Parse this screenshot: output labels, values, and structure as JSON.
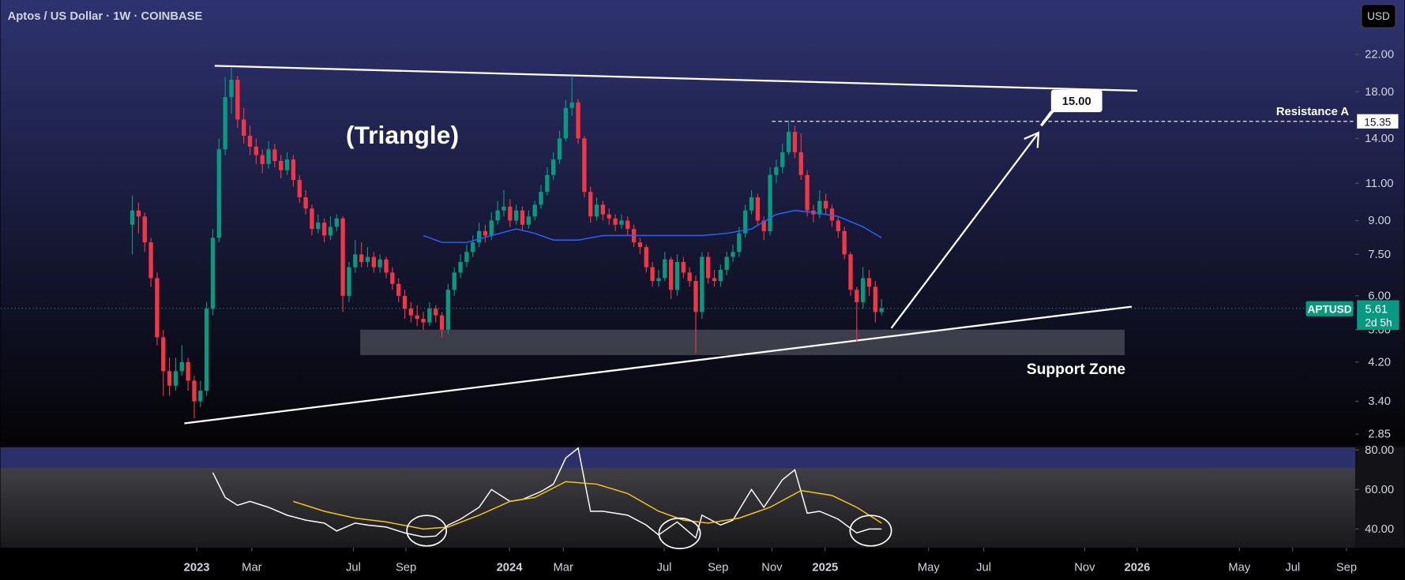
{
  "header": {
    "title": "Aptos / US Dollar · 1W · COINBASE",
    "currency": "USD"
  },
  "chart_data": [
    {
      "type": "candlestick",
      "symbol": "APTUSD",
      "log_scale": true,
      "colors": {
        "up": "#089981",
        "down": "#f23645"
      },
      "xlim": [
        -21.3,
        197.5
      ],
      "xticks": [
        {
          "value": 10.4,
          "label": "2023"
        },
        {
          "value": 19.3,
          "label": "Mar"
        },
        {
          "value": 35.7,
          "label": "Jul"
        },
        {
          "value": 44.2,
          "label": "Sep"
        },
        {
          "value": 60.9,
          "label": "2024"
        },
        {
          "value": 69.6,
          "label": "Mar"
        },
        {
          "value": 85.9,
          "label": "Jul"
        },
        {
          "value": 94.6,
          "label": "Sep"
        },
        {
          "value": 103.3,
          "label": "Nov"
        },
        {
          "value": 111.9,
          "label": "2025"
        },
        {
          "value": 128.6,
          "label": "May"
        },
        {
          "value": 137.5,
          "label": "Jul"
        },
        {
          "value": 153.8,
          "label": "Nov"
        },
        {
          "value": 162.3,
          "label": "2026"
        },
        {
          "value": 178.8,
          "label": "May"
        },
        {
          "value": 187.4,
          "label": "Jul"
        },
        {
          "value": 196.1,
          "label": "Sep"
        }
      ],
      "ylim": [
        2.68,
        29.5
      ],
      "yticks": [
        {
          "value": 22,
          "label": "22.00"
        },
        {
          "value": 18,
          "label": "18.00"
        },
        {
          "value": 14,
          "label": "14.00"
        },
        {
          "value": 11,
          "label": "11.00"
        },
        {
          "value": 9,
          "label": "9.00"
        },
        {
          "value": 7.5,
          "label": "7.50"
        },
        {
          "value": 6,
          "label": "6.00"
        },
        {
          "value": 5,
          "label": "5.00"
        },
        {
          "value": 4.2,
          "label": "4.20"
        },
        {
          "value": 3.4,
          "label": "3.40"
        },
        {
          "value": 2.85,
          "label": "2.85"
        }
      ],
      "ohlc": [
        [
          8.8,
          10.3,
          7.5,
          9.5
        ],
        [
          9.5,
          9.9,
          8.4,
          9.2
        ],
        [
          9.2,
          9.4,
          7.6,
          8.0
        ],
        [
          8.0,
          8.2,
          6.3,
          6.6
        ],
        [
          6.6,
          6.8,
          4.6,
          4.8
        ],
        [
          4.8,
          5.0,
          3.5,
          4.0
        ],
        [
          4.0,
          4.3,
          3.5,
          3.7
        ],
        [
          3.7,
          4.3,
          3.6,
          4.0
        ],
        [
          4.0,
          4.6,
          3.9,
          4.2
        ],
        [
          4.2,
          4.3,
          3.6,
          3.8
        ],
        [
          3.8,
          3.9,
          3.1,
          3.4
        ],
        [
          3.4,
          3.8,
          3.3,
          3.6
        ],
        [
          3.6,
          5.8,
          3.5,
          5.6
        ],
        [
          5.6,
          8.6,
          5.4,
          8.2
        ],
        [
          8.2,
          14.0,
          8.0,
          13.2
        ],
        [
          13.2,
          19.5,
          12.8,
          17.5
        ],
        [
          17.5,
          20.6,
          16.0,
          19.2
        ],
        [
          19.2,
          19.6,
          14.8,
          15.5
        ],
        [
          15.5,
          16.5,
          13.6,
          14.2
        ],
        [
          14.2,
          15.0,
          12.8,
          13.4
        ],
        [
          13.4,
          14.0,
          12.2,
          12.8
        ],
        [
          12.8,
          13.2,
          11.6,
          12.2
        ],
        [
          12.2,
          13.8,
          11.9,
          13.2
        ],
        [
          13.2,
          13.6,
          12.0,
          12.4
        ],
        [
          12.4,
          12.8,
          11.3,
          11.8
        ],
        [
          11.8,
          13.0,
          11.5,
          12.5
        ],
        [
          12.5,
          12.8,
          10.8,
          11.2
        ],
        [
          11.2,
          11.5,
          9.9,
          10.2
        ],
        [
          10.2,
          10.6,
          9.3,
          9.6
        ],
        [
          9.6,
          9.8,
          8.3,
          8.6
        ],
        [
          8.6,
          9.3,
          8.4,
          8.9
        ],
        [
          8.9,
          9.1,
          8.0,
          8.3
        ],
        [
          8.3,
          9.2,
          8.1,
          8.7
        ],
        [
          8.7,
          9.3,
          8.5,
          9.1
        ],
        [
          9.1,
          9.2,
          5.5,
          6.0
        ],
        [
          6.0,
          7.2,
          5.8,
          7.0
        ],
        [
          7.0,
          8.1,
          6.8,
          7.5
        ],
        [
          7.5,
          8.0,
          7.0,
          7.2
        ],
        [
          7.2,
          7.8,
          7.0,
          7.4
        ],
        [
          7.4,
          7.6,
          6.8,
          7.0
        ],
        [
          7.0,
          7.5,
          6.8,
          7.3
        ],
        [
          7.3,
          7.4,
          6.6,
          6.8
        ],
        [
          6.8,
          7.0,
          6.2,
          6.4
        ],
        [
          6.4,
          6.6,
          5.8,
          6.0
        ],
        [
          6.0,
          6.2,
          5.3,
          5.6
        ],
        [
          5.6,
          5.8,
          5.2,
          5.4
        ],
        [
          5.4,
          5.7,
          5.1,
          5.3
        ],
        [
          5.3,
          5.5,
          5.0,
          5.2
        ],
        [
          5.2,
          5.8,
          5.1,
          5.6
        ],
        [
          5.6,
          5.7,
          5.2,
          5.4
        ],
        [
          5.4,
          5.5,
          4.8,
          5.0
        ],
        [
          5.0,
          6.4,
          4.9,
          6.2
        ],
        [
          6.2,
          7.0,
          6.0,
          6.8
        ],
        [
          6.8,
          7.5,
          6.6,
          7.2
        ],
        [
          7.2,
          7.9,
          7.0,
          7.6
        ],
        [
          7.6,
          8.3,
          7.4,
          8.0
        ],
        [
          8.0,
          8.9,
          7.8,
          8.5
        ],
        [
          8.5,
          8.8,
          8.0,
          8.3
        ],
        [
          8.3,
          9.4,
          8.1,
          9.0
        ],
        [
          9.0,
          10.0,
          8.8,
          9.5
        ],
        [
          9.5,
          10.6,
          9.2,
          9.7
        ],
        [
          9.7,
          10.1,
          8.7,
          9.0
        ],
        [
          9.0,
          9.8,
          8.8,
          9.5
        ],
        [
          9.5,
          9.7,
          8.5,
          8.8
        ],
        [
          8.8,
          9.5,
          8.6,
          9.2
        ],
        [
          9.2,
          10.0,
          9.0,
          9.8
        ],
        [
          9.8,
          10.9,
          9.6,
          10.5
        ],
        [
          10.5,
          12.0,
          10.3,
          11.5
        ],
        [
          11.5,
          13.0,
          11.2,
          12.5
        ],
        [
          12.5,
          14.6,
          12.2,
          14.0
        ],
        [
          14.0,
          17.2,
          13.8,
          16.5
        ],
        [
          16.5,
          19.6,
          15.8,
          17.0
        ],
        [
          17.0,
          17.3,
          13.6,
          14.0
        ],
        [
          14.0,
          14.2,
          10.2,
          10.5
        ],
        [
          10.5,
          10.8,
          8.9,
          9.2
        ],
        [
          9.2,
          10.2,
          9.0,
          9.8
        ],
        [
          9.8,
          10.0,
          9.0,
          9.3
        ],
        [
          9.3,
          9.6,
          8.8,
          9.1
        ],
        [
          9.1,
          9.3,
          8.5,
          8.8
        ],
        [
          8.8,
          9.3,
          8.6,
          9.0
        ],
        [
          9.0,
          9.2,
          8.3,
          8.6
        ],
        [
          8.6,
          8.8,
          7.8,
          8.0
        ],
        [
          8.0,
          8.2,
          7.5,
          7.8
        ],
        [
          7.8,
          7.9,
          6.8,
          7.0
        ],
        [
          7.0,
          7.2,
          6.3,
          6.5
        ],
        [
          6.5,
          6.9,
          6.3,
          6.6
        ],
        [
          6.6,
          7.6,
          6.5,
          7.3
        ],
        [
          7.3,
          7.4,
          5.9,
          6.2
        ],
        [
          6.2,
          7.5,
          6.0,
          7.2
        ],
        [
          7.2,
          7.4,
          6.6,
          6.8
        ],
        [
          6.8,
          7.0,
          6.3,
          6.5
        ],
        [
          6.5,
          6.7,
          4.4,
          5.5
        ],
        [
          5.5,
          7.6,
          5.3,
          7.4
        ],
        [
          7.4,
          7.6,
          6.4,
          6.6
        ],
        [
          6.6,
          6.9,
          6.3,
          6.5
        ],
        [
          6.5,
          7.1,
          6.3,
          6.9
        ],
        [
          6.9,
          7.6,
          6.7,
          7.4
        ],
        [
          7.4,
          7.9,
          7.2,
          7.6
        ],
        [
          7.6,
          8.7,
          7.4,
          8.4
        ],
        [
          8.4,
          9.8,
          8.2,
          9.5
        ],
        [
          9.5,
          10.6,
          9.3,
          10.2
        ],
        [
          10.2,
          10.4,
          8.8,
          9.0
        ],
        [
          9.0,
          9.2,
          8.1,
          8.5
        ],
        [
          8.5,
          12.0,
          8.3,
          11.5
        ],
        [
          11.5,
          12.5,
          11.0,
          12.0
        ],
        [
          12.0,
          13.6,
          11.6,
          13.0
        ],
        [
          13.0,
          15.4,
          12.8,
          14.5
        ],
        [
          14.5,
          15.0,
          12.6,
          13.0
        ],
        [
          13.0,
          14.4,
          11.2,
          11.5
        ],
        [
          11.5,
          11.8,
          9.2,
          9.5
        ],
        [
          9.5,
          9.8,
          8.9,
          9.3
        ],
        [
          9.3,
          10.6,
          9.1,
          10.0
        ],
        [
          10.0,
          10.4,
          9.3,
          9.6
        ],
        [
          9.6,
          9.8,
          8.7,
          9.0
        ],
        [
          9.0,
          9.2,
          8.2,
          8.5
        ],
        [
          8.5,
          8.7,
          7.3,
          7.5
        ],
        [
          7.5,
          7.6,
          6.0,
          6.2
        ],
        [
          6.2,
          6.3,
          4.7,
          5.8
        ],
        [
          5.8,
          7.0,
          5.6,
          6.6
        ],
        [
          6.6,
          6.9,
          6.0,
          6.3
        ],
        [
          6.3,
          6.5,
          5.2,
          5.5
        ],
        [
          5.5,
          5.9,
          5.4,
          5.61
        ]
      ],
      "moving_average": {
        "color": "#2962ff",
        "x": [
          47,
          50,
          54,
          58,
          62,
          65,
          68,
          72,
          76,
          80,
          84,
          88,
          92,
          96,
          100,
          104,
          107,
          110,
          114,
          118,
          121
        ],
        "values": [
          8.3,
          8.0,
          8.0,
          8.3,
          8.6,
          8.4,
          8.1,
          8.1,
          8.3,
          8.3,
          8.3,
          8.3,
          8.3,
          8.4,
          8.6,
          9.3,
          9.5,
          9.4,
          9.2,
          8.7,
          8.2
        ]
      },
      "trendlines": [
        {
          "color": "#ffffff",
          "x": [
            13.3,
            162.3
          ],
          "values": [
            20.7,
            18.1
          ]
        },
        {
          "color": "#ffffff",
          "x": [
            8.4,
            161.4
          ],
          "values": [
            3.02,
            5.66
          ]
        }
      ],
      "pattern_label": "(Triangle)",
      "target": {
        "value": 15,
        "label": "15.00"
      },
      "resistance": {
        "label": "Resistance A",
        "value": 15.35
      },
      "last_price": {
        "value": 5.61,
        "countdown": "2d 5h"
      },
      "support_zone": {
        "label": "Support Zone",
        "range": [
          4.36,
          5.0
        ]
      }
    },
    {
      "type": "line",
      "ylim": [
        30.5,
        81.4
      ],
      "yticks": [
        {
          "value": 80,
          "label": "80.00"
        },
        {
          "value": 60,
          "label": "60.00"
        },
        {
          "value": 40,
          "label": "40.00"
        }
      ],
      "series": [
        {
          "color": "#ffffff",
          "x": [
            13,
            15,
            17,
            19,
            22,
            25,
            28,
            31,
            33,
            36,
            38,
            41,
            44,
            47,
            49,
            51,
            53,
            56,
            58,
            61,
            63,
            66,
            68,
            70,
            72,
            74,
            76,
            80,
            83,
            85,
            88,
            91,
            92,
            95,
            97,
            100,
            102,
            105,
            107,
            109,
            111,
            114,
            117,
            119,
            121
          ],
          "values": [
            68.6,
            56,
            52,
            54,
            51,
            47,
            44.5,
            43,
            39,
            43,
            42,
            41,
            38,
            36,
            36.4,
            42,
            45,
            51,
            60,
            54,
            55,
            59,
            62.7,
            76,
            81,
            49,
            49,
            47,
            42,
            37,
            43.6,
            35.5,
            47,
            42,
            44.5,
            60,
            51,
            65,
            70,
            48,
            49,
            45,
            38,
            40,
            40
          ]
        },
        {
          "color": "#f5c518",
          "x": [
            26,
            31,
            36,
            41,
            47,
            51,
            56,
            61,
            65,
            70,
            75,
            80,
            85,
            89,
            93,
            98,
            103,
            108,
            113,
            117,
            121
          ],
          "values": [
            54,
            49,
            45.5,
            43.6,
            40,
            41,
            47,
            54,
            56,
            64,
            62.7,
            58,
            49,
            44.5,
            43,
            45.5,
            51,
            59.5,
            57,
            51,
            43
          ]
        }
      ]
    }
  ]
}
